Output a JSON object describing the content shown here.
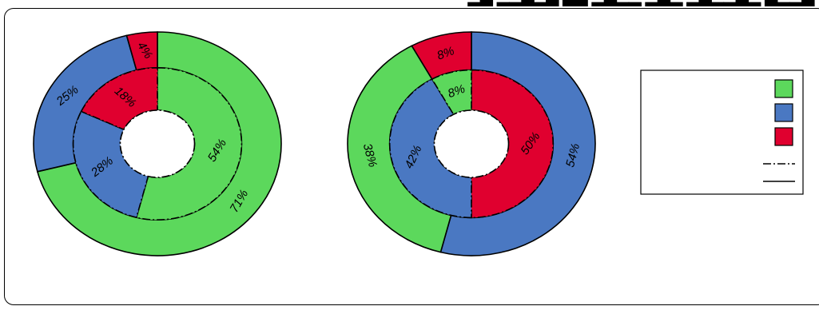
{
  "chart_data": {
    "type": "pie",
    "title": "",
    "legend_position": "right",
    "charts": [
      {
        "rings": [
          {
            "ring": "outer",
            "line_style": "solid",
            "values": [
              71,
              25,
              4
            ],
            "labels": [
              "71%",
              "25%",
              "4%"
            ],
            "colors": [
              "#5cd85c",
              "#4a78c2",
              "#e0002f"
            ]
          },
          {
            "ring": "inner",
            "line_style": "dashdot",
            "values": [
              54,
              28,
              18
            ],
            "labels": [
              "54%",
              "28%",
              "18%"
            ],
            "colors": [
              "#5cd85c",
              "#4a78c2",
              "#e0002f"
            ]
          }
        ]
      },
      {
        "rings": [
          {
            "ring": "outer",
            "line_style": "solid",
            "values": [
              54,
              38,
              8
            ],
            "labels": [
              "54%",
              "38%",
              "8%"
            ],
            "colors": [
              "#4a78c2",
              "#5cd85c",
              "#e0002f"
            ]
          },
          {
            "ring": "inner",
            "line_style": "dashdot",
            "values": [
              50,
              42,
              8
            ],
            "labels": [
              "50%",
              "42%",
              "8%"
            ],
            "colors": [
              "#e0002f",
              "#4a78c2",
              "#5cd85c"
            ]
          }
        ]
      }
    ],
    "legend": {
      "swatch_colors": [
        "#5cd85c",
        "#4a78c2",
        "#e0002f"
      ],
      "line_styles": [
        "dashdot",
        "solid"
      ]
    }
  }
}
